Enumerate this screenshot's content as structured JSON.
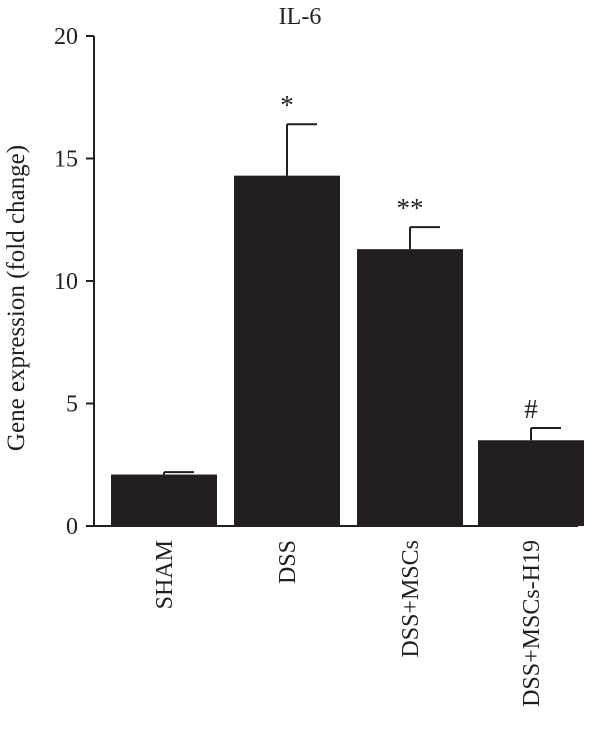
{
  "chart_data": {
    "type": "bar",
    "title": "IL-6",
    "ylabel": "Gene expression (fold change)",
    "xlabel": "",
    "ylim": [
      0,
      20
    ],
    "yticks": [
      "0",
      "5",
      "10",
      "15",
      "20"
    ],
    "categories": [
      "SHAM",
      "DSS",
      "DSS+MSCs",
      "DSS+MSCs-H19"
    ],
    "values": [
      2.1,
      14.3,
      11.3,
      3.5
    ],
    "errors": [
      0.1,
      2.1,
      0.9,
      0.5
    ],
    "annotations": [
      "",
      "*",
      "**",
      "#"
    ],
    "bar_color": "#231f20",
    "grid": false,
    "legend": "none"
  }
}
